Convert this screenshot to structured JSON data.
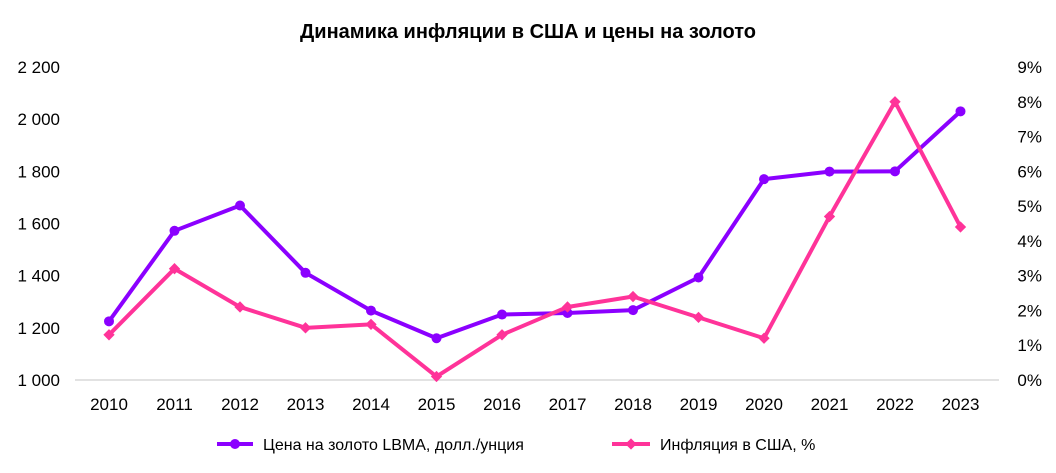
{
  "chart_data": {
    "type": "line",
    "title": "Динамика инфляции в США и цены на золото",
    "categories": [
      "2010",
      "2011",
      "2012",
      "2013",
      "2014",
      "2015",
      "2016",
      "2017",
      "2018",
      "2019",
      "2020",
      "2021",
      "2022",
      "2023"
    ],
    "y_left": {
      "min": 1000,
      "max": 2200,
      "ticks": [
        1000,
        1200,
        1400,
        1600,
        1800,
        2000,
        2200
      ],
      "tick_labels": [
        "1 000",
        "1 200",
        "1 400",
        "1 600",
        "1 800",
        "2 000",
        "2 200"
      ]
    },
    "y_right": {
      "min": 0,
      "max": 9,
      "ticks": [
        0,
        1,
        2,
        3,
        4,
        5,
        6,
        7,
        8,
        9
      ],
      "tick_labels": [
        "0%",
        "1%",
        "2%",
        "3%",
        "4%",
        "5%",
        "6%",
        "7%",
        "8%",
        "9%"
      ]
    },
    "series": [
      {
        "name": "Цена на золото LBMA, долл./унция",
        "axis": "left",
        "color": "#8B00FF",
        "marker": "circle",
        "values": [
          1225,
          1572,
          1669,
          1411,
          1266,
          1160,
          1251,
          1257,
          1268,
          1393,
          1770,
          1799,
          1800,
          2030
        ]
      },
      {
        "name": "Инфляция в США, %",
        "axis": "right",
        "color": "#FF3399",
        "marker": "diamond",
        "values": [
          1.3,
          3.2,
          2.1,
          1.5,
          1.6,
          0.1,
          1.3,
          2.1,
          2.4,
          1.8,
          1.2,
          4.7,
          8.0,
          4.4
        ]
      }
    ],
    "grid": false,
    "legend": "bottom"
  }
}
